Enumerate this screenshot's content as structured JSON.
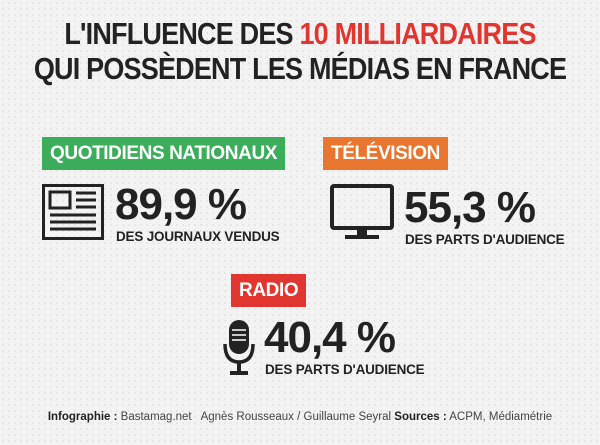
{
  "title": {
    "line1_prefix": "L'INFLUENCE DES ",
    "line1_highlight": "10 MILLIARDAIRES",
    "line2": "QUI POSSÈDENT LES MÉDIAS EN FRANCE"
  },
  "sections": {
    "quotidiens": {
      "label": "QUOTIDIENS NATIONAUX",
      "value": "89,9 %",
      "caption": "DES JOURNAUX VENDUS",
      "icon": "newspaper-icon",
      "color": "#3bad5b"
    },
    "television": {
      "label": "TÉLÉVISION",
      "value": "55,3 %",
      "caption": "DES PARTS D'AUDIENCE",
      "icon": "television-icon",
      "color": "#e8762e"
    },
    "radio": {
      "label": "RADIO",
      "value": "40,4 %",
      "caption": "DES PARTS D'AUDIENCE",
      "icon": "microphone-icon",
      "color": "#e0362f"
    }
  },
  "footer": {
    "infographie_label": "Infographie :",
    "infographie_value": "Bastamag.net   Agnès Rousseaux / Guillaume Seyral",
    "sources_label": "Sources :",
    "sources_value": "ACPM, Médiamétrie"
  },
  "colors": {
    "highlight": "#e0362f",
    "text": "#222222"
  }
}
